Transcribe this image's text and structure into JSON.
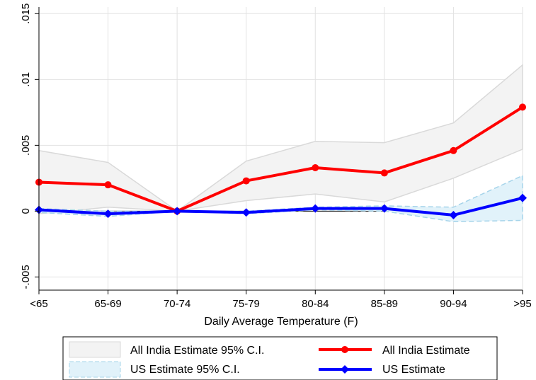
{
  "chart_data": {
    "type": "line",
    "categories": [
      "<65",
      "65-69",
      "70-74",
      "75-79",
      "80-84",
      "85-89",
      "90-94",
      ">95"
    ],
    "xlabel": "Daily Average Temperature (F)",
    "ylabel": "",
    "ylim": [
      -0.006,
      0.0155
    ],
    "yticks": [
      -0.005,
      0,
      0.005,
      0.01,
      0.015
    ],
    "ytick_labels": [
      "-.005",
      "0",
      ".005",
      ".01",
      ".015"
    ],
    "grid": true,
    "legend_position": "bottom",
    "series": [
      {
        "name": "All India Estimate",
        "color": "#ff0000",
        "marker": "circle",
        "values": [
          0.0022,
          0.002,
          0.0,
          0.0023,
          0.0033,
          0.0029,
          0.0046,
          0.0079
        ]
      },
      {
        "name": "US Estimate",
        "color": "#0000ff",
        "marker": "diamond",
        "values": [
          0.0001,
          -0.0002,
          0.0,
          -0.0001,
          0.0002,
          0.0002,
          -0.0003,
          0.001
        ]
      }
    ],
    "bands": [
      {
        "name": "All India Estimate 95% C.I.",
        "fill": "#f3f3f3",
        "stroke": "#d9d9d9",
        "upper": [
          0.0046,
          0.0037,
          0.0,
          0.0038,
          0.0053,
          0.0052,
          0.0067,
          0.0111
        ],
        "lower": [
          -0.0002,
          0.0003,
          0.0,
          0.0008,
          0.0013,
          0.0007,
          0.0025,
          0.0047
        ]
      },
      {
        "name": "US Estimate 95% C.I.",
        "fill": "#e1f2fa",
        "stroke": "#a6d4ea",
        "upper": [
          0.0002,
          0.0,
          0.0,
          0.0,
          0.0003,
          0.0004,
          0.0003,
          0.0027
        ],
        "lower": [
          -0.0001,
          -0.0004,
          0.0,
          -0.0002,
          0.0001,
          0.0,
          -0.0008,
          -0.0007
        ]
      }
    ]
  }
}
